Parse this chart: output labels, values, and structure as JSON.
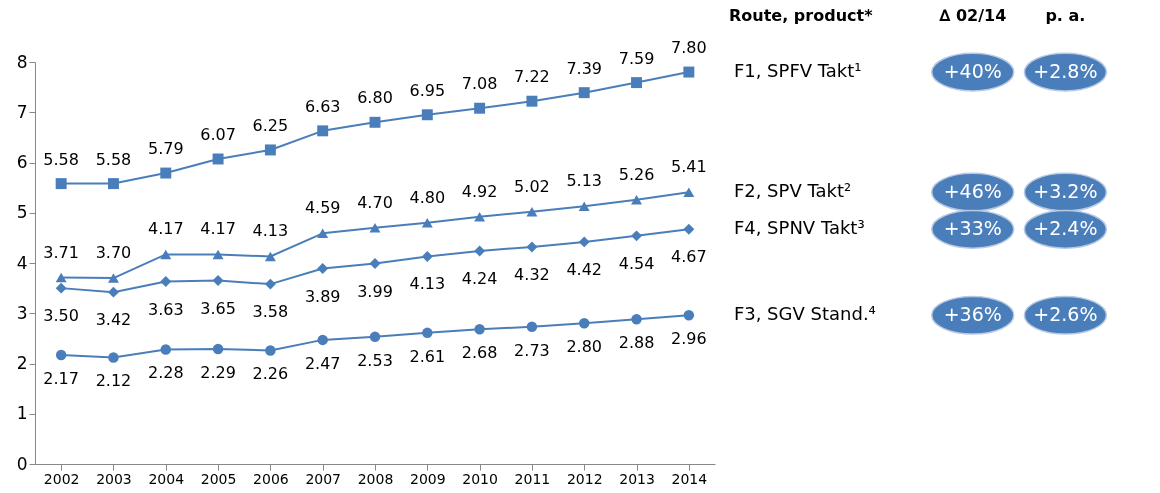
{
  "chart_data": [
    {
      "type": "line",
      "categories": [
        "2002",
        "2003",
        "2004",
        "2005",
        "2006",
        "2007",
        "2008",
        "2009",
        "2010",
        "2011",
        "2012",
        "2013",
        "2014"
      ],
      "ylim": [
        0,
        8
      ],
      "yticks": [
        0,
        1,
        2,
        3,
        4,
        5,
        6,
        7,
        8
      ],
      "grid": false,
      "line_style": "solid",
      "series": [
        {
          "color": "#4a7ebb",
          "marker": "square",
          "values": [
            5.58,
            5.58,
            5.79,
            6.07,
            6.25,
            6.63,
            6.8,
            6.95,
            7.08,
            7.22,
            7.39,
            7.59,
            7.8
          ],
          "value_labels": [
            "5.58",
            "5.58",
            "5.79",
            "6.07",
            "6.25",
            "6.63",
            "6.80",
            "6.95",
            "7.08",
            "7.22",
            "7.39",
            "7.59",
            "7.80"
          ]
        },
        {
          "color": "#4a7ebb",
          "marker": "triangle",
          "values": [
            3.71,
            3.7,
            4.17,
            4.17,
            4.13,
            4.59,
            4.7,
            4.8,
            4.92,
            5.02,
            5.13,
            5.26,
            5.41
          ],
          "value_labels": [
            "3.71",
            "3.70",
            "4.17",
            "4.17",
            "4.13",
            "4.59",
            "4.70",
            "4.80",
            "4.92",
            "5.02",
            "5.13",
            "5.26",
            "5.41"
          ]
        },
        {
          "color": "#4a7ebb",
          "marker": "diamond",
          "values": [
            3.5,
            3.42,
            3.63,
            3.65,
            3.58,
            3.89,
            3.99,
            4.13,
            4.24,
            4.32,
            4.42,
            4.54,
            4.67
          ],
          "value_labels": [
            "3.50",
            "3.42",
            "3.63",
            "3.65",
            "3.58",
            "3.89",
            "3.99",
            "4.13",
            "4.24",
            "4.32",
            "4.42",
            "4.54",
            "4.67"
          ]
        },
        {
          "color": "#4a7ebb",
          "marker": "circle",
          "values": [
            2.17,
            2.12,
            2.28,
            2.29,
            2.26,
            2.47,
            2.53,
            2.61,
            2.68,
            2.73,
            2.8,
            2.88,
            2.96
          ],
          "value_labels": [
            "2.17",
            "2.12",
            "2.28",
            "2.29",
            "2.26",
            "2.47",
            "2.53",
            "2.61",
            "2.68",
            "2.73",
            "2.80",
            "2.88",
            "2.96"
          ]
        }
      ]
    },
    {
      "type": "other",
      "title": "Route, product*",
      "categories": [
        "F1, SPFV Takt¹",
        "F2, SPV Takt²",
        "F4, SPNV Takt³",
        "F3, SGV Stand.⁴"
      ],
      "series": [
        {
          "name": "∆ 02/14",
          "color": "#4a7ebb",
          "values": [
            40,
            46,
            33,
            36
          ],
          "value_labels": [
            "+40%",
            "+46%",
            "+33%",
            "+36%"
          ]
        },
        {
          "name": "p. a.",
          "color": "#4a7ebb",
          "values": [
            2.8,
            3.2,
            2.4,
            2.6
          ],
          "value_labels": [
            "+2.8%",
            "+3.2%",
            "+2.4%",
            "+2.6%"
          ]
        }
      ]
    }
  ]
}
